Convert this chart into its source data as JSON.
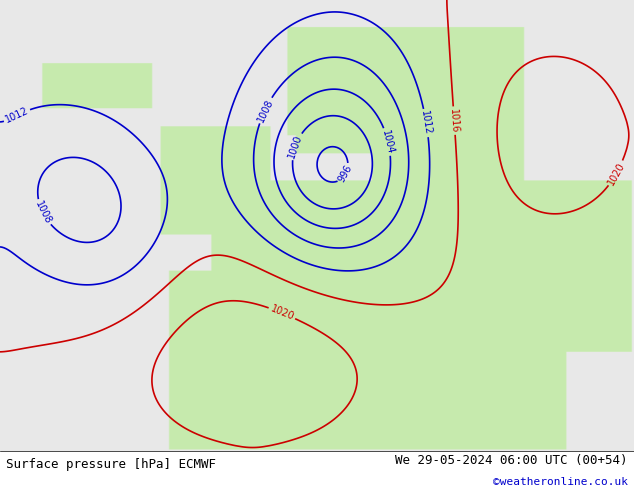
{
  "title_left": "Surface pressure [hPa] ECMWF",
  "title_right": "We 29-05-2024 06:00 UTC (00+54)",
  "copyright": "©weatheronline.co.uk",
  "bg_ocean": "#e8e8e8",
  "bg_land": "#c8e8b0",
  "bg_land2": "#d0eab8",
  "contour_black": "#000000",
  "contour_red": "#cc0000",
  "contour_blue": "#0000cc",
  "text_color": "#000000",
  "copyright_color": "#0000cc",
  "bottom_bg": "#ffffff",
  "font_size_label": 8,
  "font_size_title": 9,
  "font_size_copyright": 8,
  "map_extent": [
    -30,
    45,
    25,
    75
  ]
}
